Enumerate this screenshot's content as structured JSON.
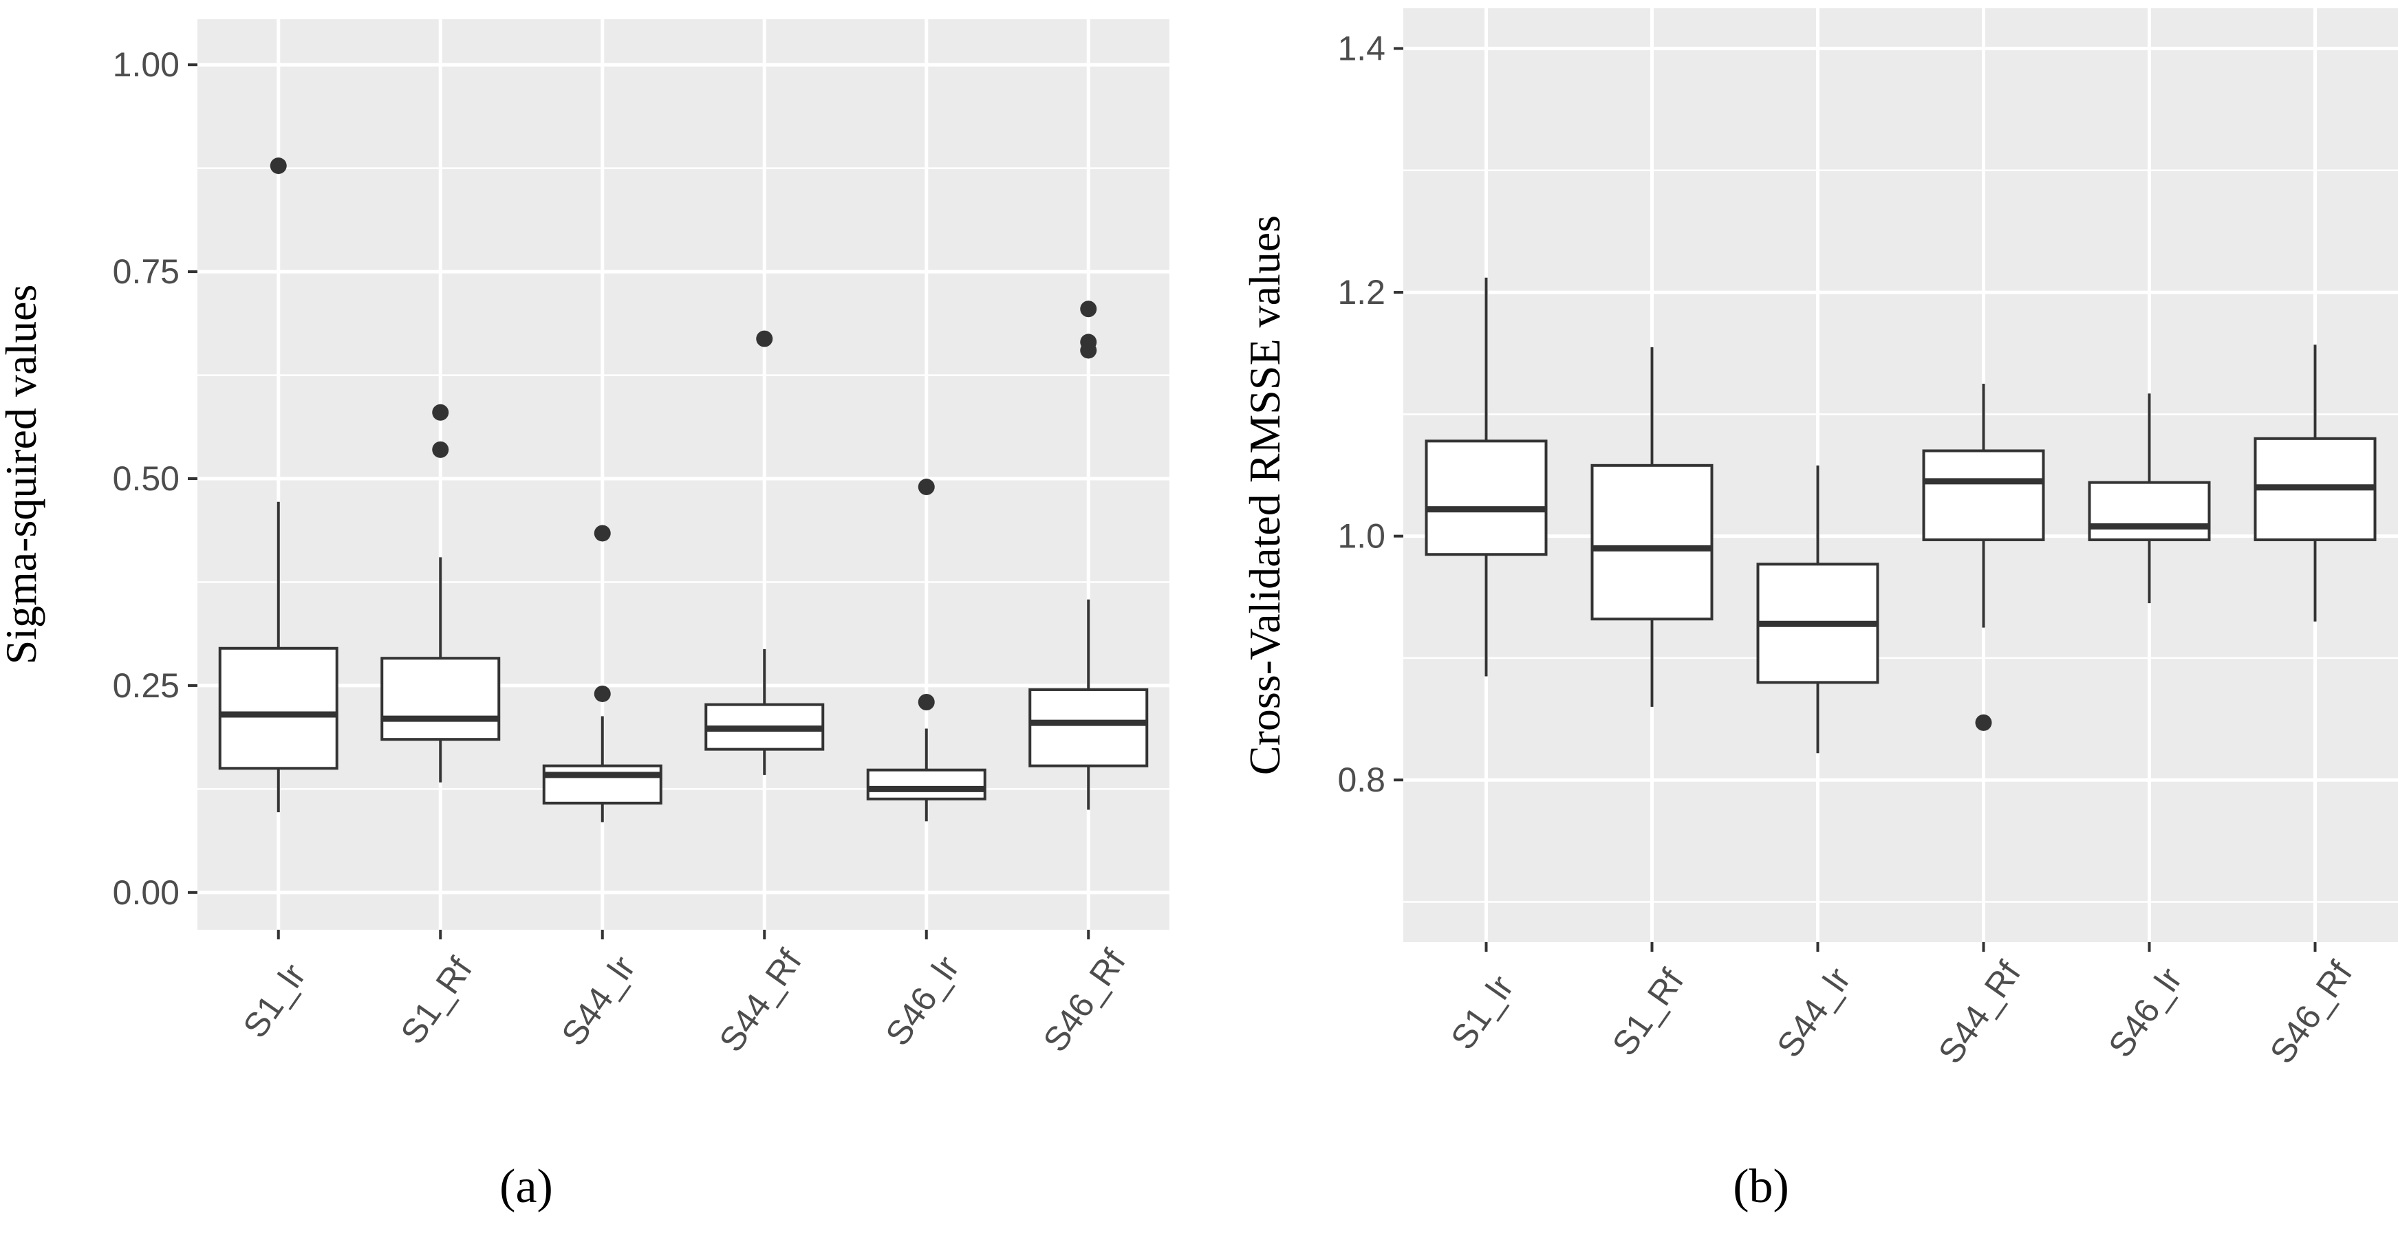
{
  "chart_data": [
    {
      "type": "boxplot",
      "panel_label": "a",
      "xlabel": "",
      "ylabel": "Sigma-squired values",
      "ylim": [
        -0.045,
        1.055
      ],
      "yticks": [
        0.0,
        0.25,
        0.5,
        0.75,
        1.0
      ],
      "ytick_labels": [
        "0.00",
        "0.25",
        "0.50",
        "0.75",
        "1.00"
      ],
      "grid": true,
      "colors": {
        "panel_bg": "#ebebeb",
        "grid": "#ffffff",
        "box_line": "#333333",
        "box_fill": "#ffffff",
        "outlier": "#333333"
      },
      "categories": [
        "S1_lr",
        "S1_Rf",
        "S44_lr",
        "S44_Rf",
        "S46_lr",
        "S46_Rf"
      ],
      "boxes": [
        {
          "whisker_low": 0.097,
          "q1": 0.15,
          "median": 0.215,
          "q3": 0.295,
          "whisker_high": 0.472,
          "outliers": [
            0.878
          ]
        },
        {
          "whisker_low": 0.133,
          "q1": 0.185,
          "median": 0.21,
          "q3": 0.283,
          "whisker_high": 0.405,
          "outliers": [
            0.58,
            0.535
          ]
        },
        {
          "whisker_low": 0.085,
          "q1": 0.108,
          "median": 0.142,
          "q3": 0.153,
          "whisker_high": 0.213,
          "outliers": [
            0.434,
            0.24
          ]
        },
        {
          "whisker_low": 0.142,
          "q1": 0.173,
          "median": 0.198,
          "q3": 0.227,
          "whisker_high": 0.294,
          "outliers": [
            0.669
          ]
        },
        {
          "whisker_low": 0.086,
          "q1": 0.113,
          "median": 0.125,
          "q3": 0.148,
          "whisker_high": 0.198,
          "outliers": [
            0.49,
            0.23
          ]
        },
        {
          "whisker_low": 0.1,
          "q1": 0.153,
          "median": 0.205,
          "q3": 0.245,
          "whisker_high": 0.354,
          "outliers": [
            0.705,
            0.665,
            0.655
          ]
        }
      ]
    },
    {
      "type": "boxplot",
      "panel_label": "b",
      "xlabel": "",
      "ylabel": "Cross-Validated RMSSE values",
      "ylim": [
        0.667,
        1.433
      ],
      "yticks": [
        0.8,
        1.0,
        1.2,
        1.4
      ],
      "ytick_labels": [
        "0.8",
        "1.0",
        "1.2",
        "1.4"
      ],
      "grid": true,
      "colors": {
        "panel_bg": "#ebebeb",
        "grid": "#ffffff",
        "box_line": "#333333",
        "box_fill": "#ffffff",
        "outlier": "#333333"
      },
      "categories": [
        "S1_lr",
        "S1_Rf",
        "S44_lr",
        "S44_Rf",
        "S46_lr",
        "S46_Rf"
      ],
      "boxes": [
        {
          "whisker_low": 0.885,
          "q1": 0.985,
          "median": 1.022,
          "q3": 1.078,
          "whisker_high": 1.212,
          "outliers": []
        },
        {
          "whisker_low": 0.86,
          "q1": 0.932,
          "median": 0.99,
          "q3": 1.058,
          "whisker_high": 1.155,
          "outliers": []
        },
        {
          "whisker_low": 0.822,
          "q1": 0.88,
          "median": 0.928,
          "q3": 0.977,
          "whisker_high": 1.058,
          "outliers": []
        },
        {
          "whisker_low": 0.925,
          "q1": 0.997,
          "median": 1.045,
          "q3": 1.07,
          "whisker_high": 1.125,
          "outliers": [
            0.847
          ]
        },
        {
          "whisker_low": 0.945,
          "q1": 0.997,
          "median": 1.008,
          "q3": 1.044,
          "whisker_high": 1.117,
          "outliers": []
        },
        {
          "whisker_low": 0.93,
          "q1": 0.997,
          "median": 1.04,
          "q3": 1.08,
          "whisker_high": 1.157,
          "outliers": []
        }
      ]
    }
  ],
  "captions": [
    "(a)",
    "(b)"
  ]
}
